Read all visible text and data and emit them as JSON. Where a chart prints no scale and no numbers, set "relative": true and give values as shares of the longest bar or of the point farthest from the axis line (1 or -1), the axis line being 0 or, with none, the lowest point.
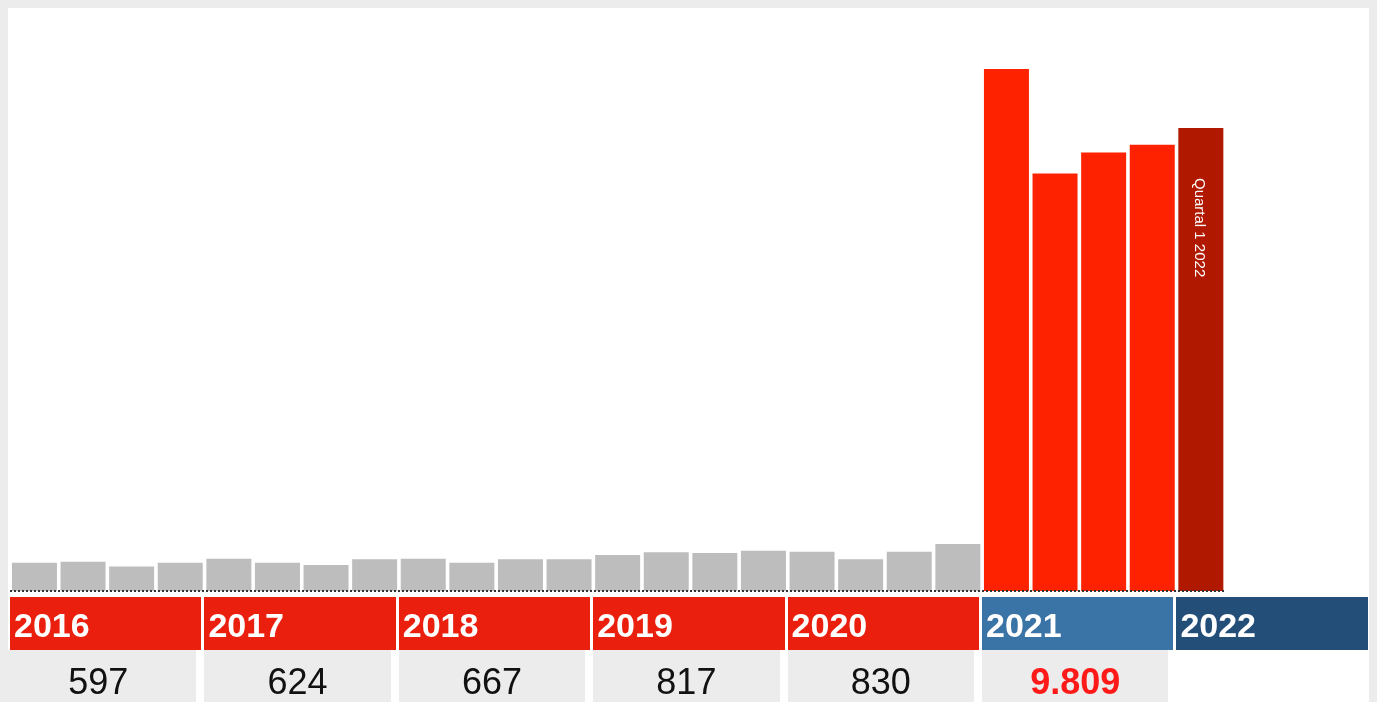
{
  "chart_data": {
    "type": "bar",
    "relative": true,
    "categories": [
      null,
      null,
      null,
      null,
      null,
      null,
      null,
      null,
      null,
      null,
      null,
      null,
      null,
      null,
      null,
      null,
      null,
      null,
      null,
      null,
      null,
      null,
      null,
      null,
      null
    ],
    "values": [
      0.054,
      0.056,
      0.047,
      0.054,
      0.062,
      0.054,
      0.05,
      0.061,
      0.062,
      0.054,
      0.061,
      0.061,
      0.069,
      0.074,
      0.073,
      0.077,
      0.075,
      0.061,
      0.075,
      0.09,
      1,
      0.8,
      0.84,
      0.855,
      0.887
    ],
    "colors": [
      "#bdbdbd",
      "#bdbdbd",
      "#bdbdbd",
      "#bdbdbd",
      "#bdbdbd",
      "#bdbdbd",
      "#bdbdbd",
      "#bdbdbd",
      "#bdbdbd",
      "#bdbdbd",
      "#bdbdbd",
      "#bdbdbd",
      "#bdbdbd",
      "#bdbdbd",
      "#bdbdbd",
      "#bdbdbd",
      "#bdbdbd",
      "#bdbdbd",
      "#bdbdbd",
      "#bdbdbd",
      "#ff2200",
      "#ff2200",
      "#ff2200",
      "#ff2200",
      "#b01800"
    ],
    "annotations": [
      "2016",
      "2017",
      "2018",
      "2019",
      "2020",
      "2021",
      "2022",
      "597",
      "624",
      "667",
      "817",
      "830",
      "9.809",
      "Quartal 1 2022"
    ]
  }
}
